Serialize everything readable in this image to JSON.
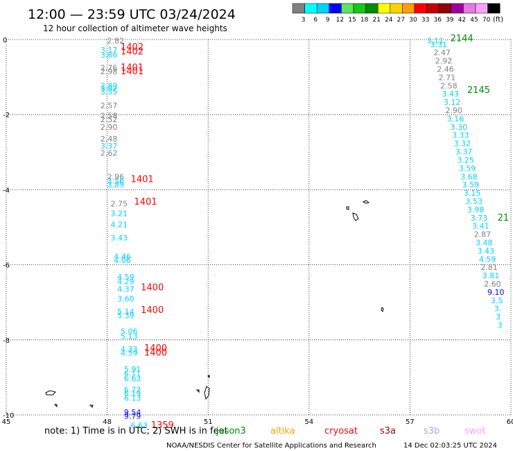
{
  "header": {
    "title": "12:00 — 23:59 UTC 03/24/2024",
    "subtitle": "12 hour collection of altimeter wave heights"
  },
  "colorbar": {
    "swatches": [
      "#808080",
      "#00ffff",
      "#00d2ff",
      "#0000ff",
      "#5ae65a",
      "#14c814",
      "#008c00",
      "#ffff00",
      "#ffd200",
      "#ffa000",
      "#ff0000",
      "#c80000",
      "#960000",
      "#a000a0",
      "#e678e6",
      "#ffa0ff",
      "#000000"
    ],
    "labels": [
      "3",
      "6",
      "9",
      "12",
      "15",
      "18",
      "21",
      "24",
      "27",
      "30",
      "33",
      "36",
      "39",
      "42",
      "45",
      "70"
    ],
    "unit": "(ft)"
  },
  "axes": {
    "lat_ticks": [
      "0",
      "-2",
      "-4",
      "-6",
      "-8",
      "-10"
    ],
    "lon_ticks": [
      "45",
      "48",
      "51",
      "54",
      "57",
      "60"
    ]
  },
  "chart_data": {
    "type": "scatter",
    "xlim": [
      45,
      60
    ],
    "ylim": [
      -10,
      0
    ],
    "grid": true,
    "series": [
      {
        "name": "pass-west",
        "points": [
          {
            "lon": 48.0,
            "lat": -0.1,
            "v": "2.82",
            "c": "#808080"
          },
          {
            "lon": 47.8,
            "lat": -0.35,
            "v": "3.17",
            "c": "#00d2ff"
          },
          {
            "lon": 47.8,
            "lat": -0.48,
            "v": "3.66",
            "c": "#00d2ff"
          },
          {
            "lon": 47.8,
            "lat": -0.82,
            "v": "2.76",
            "c": "#808080"
          },
          {
            "lon": 47.8,
            "lat": -0.92,
            "v": "2.98",
            "c": "#808080"
          },
          {
            "lon": 47.8,
            "lat": -1.3,
            "v": "2.89",
            "c": "#00d2ff"
          },
          {
            "lon": 47.8,
            "lat": -1.38,
            "v": "3.02",
            "c": "#00d2ff"
          },
          {
            "lon": 47.8,
            "lat": -1.46,
            "v": "3.35",
            "c": "#00d2ff"
          },
          {
            "lon": 47.8,
            "lat": -1.83,
            "v": "2.57",
            "c": "#808080"
          },
          {
            "lon": 47.8,
            "lat": -2.1,
            "v": "2.58",
            "c": "#808080"
          },
          {
            "lon": 47.8,
            "lat": -2.2,
            "v": "2.52",
            "c": "#808080"
          },
          {
            "lon": 47.8,
            "lat": -2.4,
            "v": "2.90",
            "c": "#808080"
          },
          {
            "lon": 47.8,
            "lat": -2.72,
            "v": "2.48",
            "c": "#808080"
          },
          {
            "lon": 47.8,
            "lat": -2.9,
            "v": "3.37",
            "c": "#00d2ff"
          },
          {
            "lon": 47.8,
            "lat": -3.1,
            "v": "2.62",
            "c": "#808080"
          },
          {
            "lon": 48.0,
            "lat": -3.72,
            "v": "2.96",
            "c": "#808080"
          },
          {
            "lon": 48.0,
            "lat": -3.84,
            "v": "3.56",
            "c": "#00d2ff"
          },
          {
            "lon": 48.0,
            "lat": -3.94,
            "v": "3.89",
            "c": "#00d2ff"
          },
          {
            "lon": 48.1,
            "lat": -4.45,
            "v": "2.75",
            "c": "#808080"
          },
          {
            "lon": 48.1,
            "lat": -4.7,
            "v": "3.21",
            "c": "#00d2ff"
          },
          {
            "lon": 48.1,
            "lat": -5.0,
            "v": "4.21",
            "c": "#00d2ff"
          },
          {
            "lon": 48.1,
            "lat": -5.35,
            "v": "3.43",
            "c": "#00d2ff"
          },
          {
            "lon": 48.2,
            "lat": -5.85,
            "v": "4.46",
            "c": "#00d2ff"
          },
          {
            "lon": 48.2,
            "lat": -5.95,
            "v": "4.06",
            "c": "#00d2ff"
          },
          {
            "lon": 48.3,
            "lat": -6.4,
            "v": "4.59",
            "c": "#00d2ff"
          },
          {
            "lon": 48.3,
            "lat": -6.52,
            "v": "4.29",
            "c": "#00d2ff"
          },
          {
            "lon": 48.3,
            "lat": -6.72,
            "v": "4.37",
            "c": "#00d2ff"
          },
          {
            "lon": 48.3,
            "lat": -6.98,
            "v": "3.60",
            "c": "#00d2ff"
          },
          {
            "lon": 48.3,
            "lat": -7.32,
            "v": "5.14",
            "c": "#00d2ff"
          },
          {
            "lon": 48.3,
            "lat": -7.42,
            "v": "5.39",
            "c": "#00d2ff"
          },
          {
            "lon": 48.4,
            "lat": -7.85,
            "v": "5.06",
            "c": "#00d2ff"
          },
          {
            "lon": 48.4,
            "lat": -7.98,
            "v": "5.13",
            "c": "#00d2ff"
          },
          {
            "lon": 48.4,
            "lat": -8.32,
            "v": "4.33",
            "c": "#00d2ff"
          },
          {
            "lon": 48.4,
            "lat": -8.42,
            "v": "4.59",
            "c": "#00d2ff"
          },
          {
            "lon": 48.5,
            "lat": -8.85,
            "v": "5.91",
            "c": "#00d2ff"
          },
          {
            "lon": 48.5,
            "lat": -8.97,
            "v": "6.11",
            "c": "#00d2ff"
          },
          {
            "lon": 48.5,
            "lat": -9.1,
            "v": "6.63",
            "c": "#00d2ff"
          },
          {
            "lon": 48.5,
            "lat": -9.4,
            "v": "6.72",
            "c": "#00d2ff"
          },
          {
            "lon": 48.5,
            "lat": -9.5,
            "v": "6.19",
            "c": "#00d2ff"
          },
          {
            "lon": 48.5,
            "lat": -9.62,
            "v": "6.13",
            "c": "#00d2ff"
          },
          {
            "lon": 48.5,
            "lat": -10.0,
            "v": "9.54",
            "c": "#0000ff"
          },
          {
            "lon": 48.5,
            "lat": -10.1,
            "v": "9.79",
            "c": "#0000ff"
          },
          {
            "lon": 48.7,
            "lat": -10.35,
            "v": "6.63",
            "c": "#00d2ff"
          }
        ]
      },
      {
        "name": "pass-east",
        "points": [
          {
            "lon": 57.5,
            "lat": -0.1,
            "v": "3.11",
            "c": "#00d2ff"
          },
          {
            "lon": 57.6,
            "lat": -0.2,
            "v": "3.31",
            "c": "#00d2ff"
          },
          {
            "lon": 57.7,
            "lat": -0.42,
            "v": "2.47",
            "c": "#808080"
          },
          {
            "lon": 57.75,
            "lat": -0.64,
            "v": "2.92",
            "c": "#808080"
          },
          {
            "lon": 57.8,
            "lat": -0.86,
            "v": "2.46",
            "c": "#808080"
          },
          {
            "lon": 57.85,
            "lat": -1.08,
            "v": "2.71",
            "c": "#808080"
          },
          {
            "lon": 57.9,
            "lat": -1.3,
            "v": "2.58",
            "c": "#808080"
          },
          {
            "lon": 57.95,
            "lat": -1.52,
            "v": "3.43",
            "c": "#00d2ff"
          },
          {
            "lon": 58.0,
            "lat": -1.74,
            "v": "3.12",
            "c": "#00d2ff"
          },
          {
            "lon": 58.05,
            "lat": -1.96,
            "v": "2.90",
            "c": "#808080"
          },
          {
            "lon": 58.1,
            "lat": -2.18,
            "v": "3.16",
            "c": "#00d2ff"
          },
          {
            "lon": 58.2,
            "lat": -2.4,
            "v": "3.30",
            "c": "#00d2ff"
          },
          {
            "lon": 58.25,
            "lat": -2.62,
            "v": "3.33",
            "c": "#00d2ff"
          },
          {
            "lon": 58.3,
            "lat": -2.84,
            "v": "3.32",
            "c": "#00d2ff"
          },
          {
            "lon": 58.35,
            "lat": -3.06,
            "v": "3.37",
            "c": "#00d2ff"
          },
          {
            "lon": 58.4,
            "lat": -3.28,
            "v": "3.25",
            "c": "#00d2ff"
          },
          {
            "lon": 58.45,
            "lat": -3.5,
            "v": "3.59",
            "c": "#00d2ff"
          },
          {
            "lon": 58.5,
            "lat": -3.72,
            "v": "3.68",
            "c": "#00d2ff"
          },
          {
            "lon": 58.55,
            "lat": -3.94,
            "v": "3.59",
            "c": "#00d2ff"
          },
          {
            "lon": 58.6,
            "lat": -4.16,
            "v": "3.15",
            "c": "#00d2ff"
          },
          {
            "lon": 58.65,
            "lat": -4.38,
            "v": "3.53",
            "c": "#00d2ff"
          },
          {
            "lon": 58.7,
            "lat": -4.6,
            "v": "3.98",
            "c": "#00d2ff"
          },
          {
            "lon": 58.8,
            "lat": -4.82,
            "v": "3.73",
            "c": "#00d2ff"
          },
          {
            "lon": 58.85,
            "lat": -5.04,
            "v": "3.41",
            "c": "#00d2ff"
          },
          {
            "lon": 58.9,
            "lat": -5.26,
            "v": "2.87",
            "c": "#808080"
          },
          {
            "lon": 58.95,
            "lat": -5.48,
            "v": "3.48",
            "c": "#00d2ff"
          },
          {
            "lon": 59.0,
            "lat": -5.7,
            "v": "3.43",
            "c": "#00d2ff"
          },
          {
            "lon": 59.05,
            "lat": -5.92,
            "v": "4.59",
            "c": "#00d2ff"
          },
          {
            "lon": 59.1,
            "lat": -6.14,
            "v": "2.81",
            "c": "#808080"
          },
          {
            "lon": 59.15,
            "lat": -6.36,
            "v": "3.81",
            "c": "#00d2ff"
          },
          {
            "lon": 59.2,
            "lat": -6.58,
            "v": "2.60",
            "c": "#808080"
          },
          {
            "lon": 59.3,
            "lat": -6.8,
            "v": "9.10",
            "c": "#0000ff"
          },
          {
            "lon": 59.4,
            "lat": -7.02,
            "v": "3.5",
            "c": "#00d2ff"
          },
          {
            "lon": 59.5,
            "lat": -7.24,
            "v": "3.",
            "c": "#00d2ff"
          },
          {
            "lon": 59.55,
            "lat": -7.46,
            "v": "3",
            "c": "#00d2ff"
          },
          {
            "lon": 59.6,
            "lat": -7.68,
            "v": "3",
            "c": "#00d2ff"
          }
        ]
      }
    ],
    "pass_times": [
      {
        "lon": 48.4,
        "lat": -0.28,
        "t": "1402",
        "c": "#ff0000"
      },
      {
        "lon": 48.4,
        "lat": -0.4,
        "t": "1402",
        "c": "#ff0000"
      },
      {
        "lon": 48.4,
        "lat": -0.82,
        "t": "1401",
        "c": "#ff0000"
      },
      {
        "lon": 48.4,
        "lat": -0.92,
        "t": "1401",
        "c": "#ff0000"
      },
      {
        "lon": 48.7,
        "lat": -3.8,
        "t": "1401",
        "c": "#ff0000"
      },
      {
        "lon": 48.8,
        "lat": -4.4,
        "t": "1401",
        "c": "#ff0000"
      },
      {
        "lon": 49.0,
        "lat": -6.68,
        "t": "1400",
        "c": "#ff0000"
      },
      {
        "lon": 49.0,
        "lat": -7.28,
        "t": "1400",
        "c": "#ff0000"
      },
      {
        "lon": 49.1,
        "lat": -8.3,
        "t": "1400",
        "c": "#ff0000"
      },
      {
        "lon": 49.1,
        "lat": -8.42,
        "t": "1400",
        "c": "#ff0000"
      },
      {
        "lon": 49.3,
        "lat": -10.35,
        "t": "1359",
        "c": "#ff0000"
      },
      {
        "lon": 58.2,
        "lat": -0.05,
        "t": "2144",
        "c": "#008c00"
      },
      {
        "lon": 58.7,
        "lat": -1.42,
        "t": "2145",
        "c": "#008c00"
      },
      {
        "lon": 59.6,
        "lat": -4.82,
        "t": "21",
        "c": "#008c00"
      }
    ]
  },
  "footer": {
    "note": "note:  1) Time is in UTC; 2) SWH is in feet",
    "missions": [
      {
        "name": "jason3",
        "color": "#008c00"
      },
      {
        "name": "altika",
        "color": "#ffa000"
      },
      {
        "name": "cryosat",
        "color": "#ff0000"
      },
      {
        "name": "s3a",
        "color": "#960000"
      },
      {
        "name": "s3b",
        "color": "#b0a0ff"
      },
      {
        "name": "swot",
        "color": "#ffa0ff"
      }
    ],
    "credit": "NOAA/NESDIS Center for Satellite Applications and Research",
    "timestamp": "14 Dec 02:03:25 UTC 2024"
  }
}
